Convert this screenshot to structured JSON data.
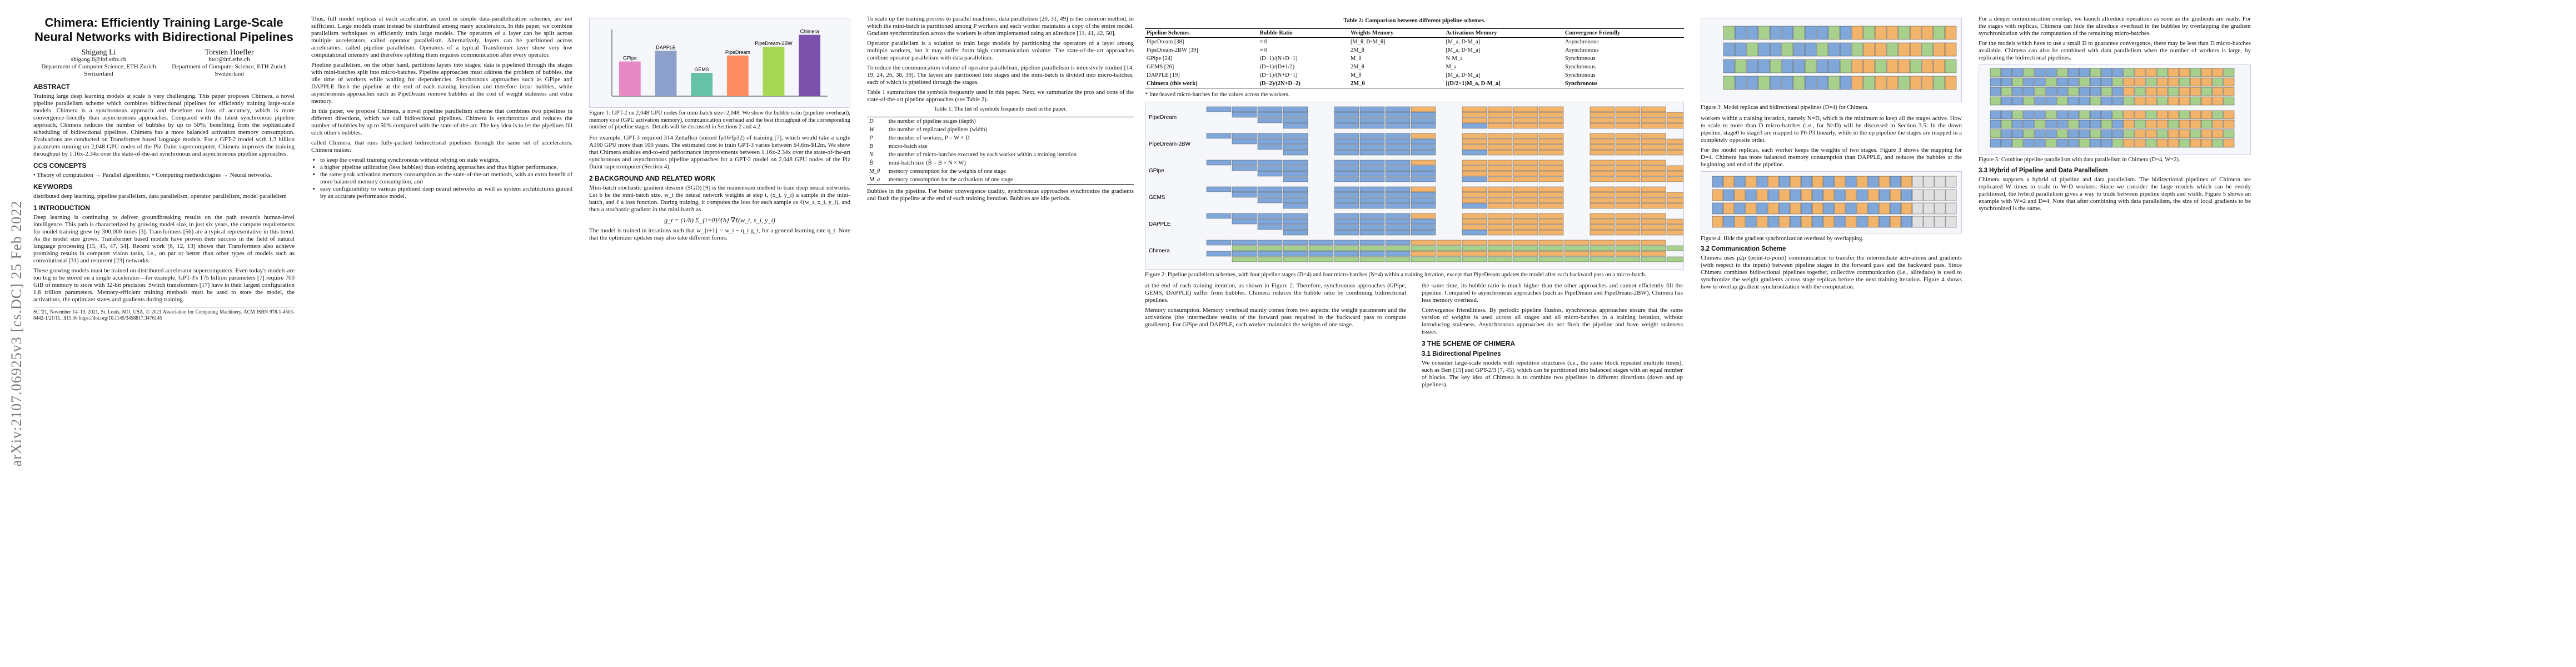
{
  "arxiv_stamp": "arXiv:2107.06925v3 [cs.DC] 25 Feb 2022",
  "title": "Chimera: Efficiently Training Large-Scale Neural Networks with Bidirectional Pipelines",
  "authors": [
    {
      "name": "Shigang Li",
      "email": "shigang.li@inf.ethz.ch",
      "affil": "Department of Computer Science, ETH Zurich",
      "country": "Switzerland"
    },
    {
      "name": "Torsten Hoefler",
      "email": "htor@inf.ethz.ch",
      "affil": "Department of Computer Science, ETH Zurich",
      "country": "Switzerland"
    }
  ],
  "abstract_heading": "ABSTRACT",
  "abstract": "Training large deep learning models at scale is very challenging. This paper proposes Chimera, a novel pipeline parallelism scheme which combines bidirectional pipelines for efficiently training large-scale models. Chimera is a synchronous approach and therefore no loss of accuracy, which is more convergence-friendly than asynchronous approaches. Compared with the latest synchronous pipeline approach, Chimera reduces the number of bubbles by up to 50%; benefiting from the sophisticated scheduling of bidirectional pipelines, Chimera has a more balanced activation memory consumption. Evaluations are conducted on Transformer based language models. For a GPT-2 model with 1.3 billion parameters running on 2,048 GPU nodes of the Piz Daint supercomputer, Chimera improves the training throughput by 1.16x-2.34x over the state-of-the-art synchronous and asynchronous pipeline approaches.",
  "ccs_heading": "CCS CONCEPTS",
  "ccs": "• Theory of computation → Parallel algorithms; • Computing methodologies → Neural networks.",
  "keywords_heading": "KEYWORDS",
  "keywords": "distributed deep learning, pipeline parallelism, data parallelism, operator parallelism, model parallelism",
  "sec1_heading": "1 INTRODUCTION",
  "sec1_p1": "Deep learning is continuing to deliver groundbreaking results on the path towards human-level intelligence. This path is characterized by growing model size, in just six years, the compute requirements for model training grew by 300,000 times [3]. Transformers [56] are a typical representative in this trend. As the model size grows, Transformer based models have proven their success in the field of natural language processing [15, 45, 47, 54]. Recent work [6, 12, 13] shows that Transformers also achieve promising results in computer vision tasks, i.e., on par or better than other types of models such as convolutional [31] and recurrent [23] networks.",
  "sec1_p2": "These growing models must be trained on distributed accelerator supercomputers. Even today's models are too big to be stored on a single accelerator—for example, GPT-3's 175 billion parameters [7] require 700 GiB of memory to store with 32-bit precision. Switch transformers [17] have in their largest configuration 1.6 trillion parameters. Memory-efficient training methods must be used to store the model, the activations, the optimizer states and gradients during training.",
  "footnote": "SC '21, November 14–19, 2021, St. Louis, MO, USA. © 2021 Association for Computing Machinery. ACM ISBN 978-1-4503-8442-1/21/11...$15.00 https://doi.org/10.1145/3458817.3476145",
  "c2_p1": "Thus, full model replicas at each accelerator, as used in simple data-parallelization schemes, are not sufficient. Large models must instead be distributed among many accelerators. In this paper, we combine parallelism techniques to efficiently train large models. The operators of a layer can be split across multiple accelerators, called operator parallelism. Alternatively, layers can be partitioned across accelerators, called pipeline parallelism. Operators of a typical Transformer layer show very low computational intensity and therefore splitting them requires communication after every operator.",
  "c2_p2": "Pipeline parallelism, on the other hand, partitions layers into stages; data is pipelined through the stages with mini-batches split into micro-batches. Pipeline approaches must address the problem of bubbles, the idle time of workers while waiting for dependencies. Synchronous approaches such as GPipe and DAPPLE flush the pipeline at the end of each training iteration and therefore incur bubbles, while asynchronous approaches such as PipeDream remove bubbles at the cost of weight staleness and extra memory.",
  "c2_p3": "In this paper, we propose Chimera, a novel pipeline parallelism scheme that combines two pipelines in different directions, which we call bidirectional pipelines. Chimera is synchronous and reduces the number of bubbles by up to 50% compared with the state-of-the-art. The key idea is to let the pipelines fill each other's bubbles.",
  "c2_bullets_intro": "called Chimera, that runs fully-packed bidirectional pipelines through the same set of accelerators. Chimera makes:",
  "c2_bullets": [
    "to keep the overall training synchronous without relying on stale weights,",
    "a higher pipeline utilization (less bubbles) than existing approaches and thus higher performance,",
    "the same peak activation memory consumption as the state-of-the-art methods, with an extra benefit of more balanced memory consumption, and",
    "easy configurability to various pipelined deep neural networks as well as system architectures guided by an accurate performance model."
  ],
  "fig1_caption": "Figure 1: GPT-2 on 2,048 GPU nodes for mini-batch size=2,048. We show the bubble ratio (pipeline overhead), memory cost (GPU activation memory), communication overhead and the best throughput of the corresponding number of pipeline stages. Details will be discussed in Sections 2 and 4.2.",
  "fig1_bars": [
    {
      "name": "GPipe",
      "value": 0.52
    },
    {
      "name": "DAPPLE",
      "value": 0.68
    },
    {
      "name": "GEMS",
      "value": 0.35
    },
    {
      "name": "PipeDream",
      "value": 0.61
    },
    {
      "name": "PipeDream-2BW",
      "value": 0.74
    },
    {
      "name": "Chimera",
      "value": 0.92
    }
  ],
  "c3_p1": "For example, GPT-3 required 314 Zettaflop (mixed fp16/fp32) of training [7], which would take a single A100 GPU more than 100 years. The estimated cost to train GPT-3 varies between $4.6m-$12m. We show that Chimera enables end-to-end performance improvements between 1.16x-2.34x over the state-of-the-art synchronous and asynchronous pipeline approaches for a GPT-2 model on 2,048 GPU nodes of the Piz Daint supercomputer (Section 4).",
  "sec2_heading": "2 BACKGROUND AND RELATED WORK",
  "sec2_p1": "Mini-batch stochastic gradient descent (SGD) [9] is the mainstream method to train deep neural networks. Let b be the mini-batch size, w_t the neural network weights at step t, (x_i, y_i) a sample in the mini-batch, and ℓ a loss function. During training, it computes the loss for each sample as ℓ(w_t, x_i, y_i), and then a stochastic gradient in the mini-batch as",
  "sec2_eq": "g_t = (1/b) Σ_{i=0}^{b} ∇ℓ(w_t, x_i, y_i)",
  "sec2_p2": "The model is trained in iterations such that w_{t+1} = w_t − η_t g_t, for a general learning rate η_t. Note that the optimizer updates may also take different forms.",
  "c4_p1": "To scale up the training process to parallel machines, data parallelism [20, 31, 49] is the common method, in which the mini-batch is partitioned among P workers and each worker maintains a copy of the entire model. Gradient synchronization across the workers is often implemented using an allreduce [11, 41, 42, 50].",
  "c4_p2": "Operator parallelism is a solution to train large models by partitioning the operators of a layer among multiple workers, but it may suffer from high communication volume. The state-of-the-art approaches combine operator parallelism with data parallelism.",
  "c4_p3": "To reduce the communication volume of operator parallelism, pipeline parallelism is intensively studied [14, 19, 24, 26, 38, 39]. The layers are partitioned into stages and the mini-batch is divided into micro-batches, each of which is pipelined through the stages.",
  "c4_p4": "Table 1 summarizes the symbols frequently used in this paper. Next, we summarize the pros and cons of the state-of-the-art pipeline approaches (see Table 2).",
  "table1_caption": "Table 1: The list of symbols frequently used in the paper.",
  "table1": [
    [
      "D",
      "the number of pipeline stages (depth)"
    ],
    [
      "W",
      "the number of replicated pipelines (width)"
    ],
    [
      "P",
      "the number of workers, P = W × D"
    ],
    [
      "B",
      "micro-batch size"
    ],
    [
      "N",
      "the number of micro-batches executed by each worker within a training iteration"
    ],
    [
      "B̂",
      "mini-batch size (B̂ = B × N × W)"
    ],
    [
      "M_θ",
      "memory consumption for the weights of one stage"
    ],
    [
      "M_a",
      "memory consumption for the activations of one stage"
    ]
  ],
  "c4_p5": "Bubbles in the pipeline. For better convergence quality, synchronous approaches synchronize the gradients and flush the pipeline at the end of each training iteration. Bubbles are idle periods.",
  "table2_caption": "Table 2: Comparison between different pipeline schemes.",
  "table2_headers": [
    "Pipeline Schemes",
    "Bubble Ratio",
    "Weights Memory",
    "Activations Memory",
    "Convergence Friendly"
  ],
  "table2_rows": [
    [
      "PipeDream [38]",
      "≈ 0",
      "[M_θ, D·M_θ]",
      "[M_a, D·M_a]",
      "Asynchronous"
    ],
    [
      "PipeDream-2BW [39]",
      "≈ 0",
      "2M_θ",
      "[M_a, D·M_a]",
      "Asynchronous"
    ],
    [
      "GPipe [24]",
      "(D−1)/(N+D−1)",
      "M_θ",
      "N·M_a",
      "Synchronous"
    ],
    [
      "GEMS [26]",
      "(D−1)/(D+1/2)",
      "2M_θ",
      "M_a",
      "Synchronous"
    ],
    [
      "DAPPLE [19]",
      "(D−1)/(N+D−1)",
      "M_θ",
      "[M_a, D·M_a]",
      "Synchronous"
    ],
    [
      "Chimera (this work)",
      "(D−2)/(2N+D−2)",
      "2M_θ",
      "[(D/2+1)M_a, D·M_a]",
      "Synchronous"
    ]
  ],
  "table2_note": "* Interleaved micro-batches for the values across the workers.",
  "fig2_caption": "Figure 2: Pipeline parallelism schemes, with four pipeline stages (D=4) and four micro-batches (N=4) within a training iteration, except that PipeDream updates the model after each backward pass on a micro-batch.",
  "fig2_labels": [
    "PipeDream",
    "PipeDream-2BW",
    "GPipe",
    "GEMS",
    "DAPPLE",
    "Chimera"
  ],
  "c5_p1": "at the end of each training iteration, as shown in Figure 2. Therefore, synchronous approaches (GPipe, GEMS, DAPPLE) suffer from bubbles. Chimera reduces the bubble ratio by combining bidirectional pipelines.",
  "c5_p2": "Memory consumption. Memory overhead mainly comes from two aspects: the weight parameters and the activations (the intermediate results of the forward pass required in the backward pass to compute gradients). For GPipe and DAPPLE, each worker maintains the weights of one stage.",
  "c6_fig3_caption": "Figure 3: Model replicas and bidirectional pipelines (D=4) for Chimera.",
  "c6_p1": "the same time, its bubble ratio is much higher than the other approaches and cannot efficiently fill the pipeline. Compared to asynchronous approaches (such as PipeDream and PipeDream-2BW), Chimera has less memory overhead.",
  "c6_p2": "Convergence friendliness. By periodic pipeline flushes, synchronous approaches ensure that the same version of weights is used across all stages and all micro-batches in a training iteration, without introducing staleness. Asynchronous approaches do not flush the pipeline and have weight staleness issues.",
  "sec3_heading": "3 THE SCHEME OF CHIMERA",
  "sec31_heading": "3.1 Bidirectional Pipelines",
  "sec31_p1": "We consider large-scale models with repetitive structures (i.e., the same block repeated multiple times), such as Bert [15] and GPT-2/3 [7, 45], which can be partitioned into balanced stages with an equal number of blocks. The key idea of Chimera is to combine two pipelines in different directions (down and up pipelines).",
  "c7_p1": "workers within a training iteration, namely N=D, which is the minimum to keep all the stages active. How to scale to more than D micro-batches (i.e., for N>D) will be discussed in Section 3.5. In the down pipeline, stage0 to stage3 are mapped to P0-P3 linearly, while in the up pipeline the stages are mapped in a completely opposite order.",
  "c7_p2": "For the model replicas, each worker keeps the weights of two stages. Figure 3 shows the mapping for D=4. Chimera has more balanced memory consumption than DAPPLE, and reduces the bubbles at the beginning and end of the pipeline.",
  "fig4_caption": "Figure 4: Hide the gradient synchronization overhead by overlapping.",
  "sec32_heading": "3.2 Communication Scheme",
  "sec32_p1": "Chimera uses p2p (point-to-point) communication to transfer the intermediate activations and gradients (with respect to the inputs) between pipeline stages in the forward pass and the backward pass. Since Chimera combines bidirectional pipelines together, collective communication (i.e., allreduce) is used to synchronize the weight gradients across stage replicas before the next training iteration. Figure 4 shows how to overlap gradient synchronization with the computation.",
  "c8_p1": "For a deeper communication overlap, we launch allreduce operations as soon as the gradients are ready. For the stages with replicas, Chimera can hide the allreduce overhead in the bubbles by overlapping the gradient synchronization with the computation of the remaining micro-batches.",
  "c8_p2": "For the models which have to use a small D to guarantee convergence, there may be less than D micro-batches available. Chimera can also be combined with data parallelism when the number of workers is large, by replicating the bidirectional pipelines.",
  "fig5_caption": "Figure 5: Combine pipeline parallelism with data parallelism in Chimera (D=4, W=2).",
  "sec33_heading": "3.3 Hybrid of Pipeline and Data Parallelism",
  "sec33_p1": "Chimera supports a hybrid of pipeline and data parallelism. The bidirectional pipelines of Chimera are replicated W times to scale to W·D workers. Since we consider the large models which can be evenly partitioned, the hybrid parallelism gives a way to trade between pipeline depth and width. Figure 5 shows an example with W=2 and D=4. Note that after combining with data parallelism, the size of local gradients to be synchronized is the same."
}
